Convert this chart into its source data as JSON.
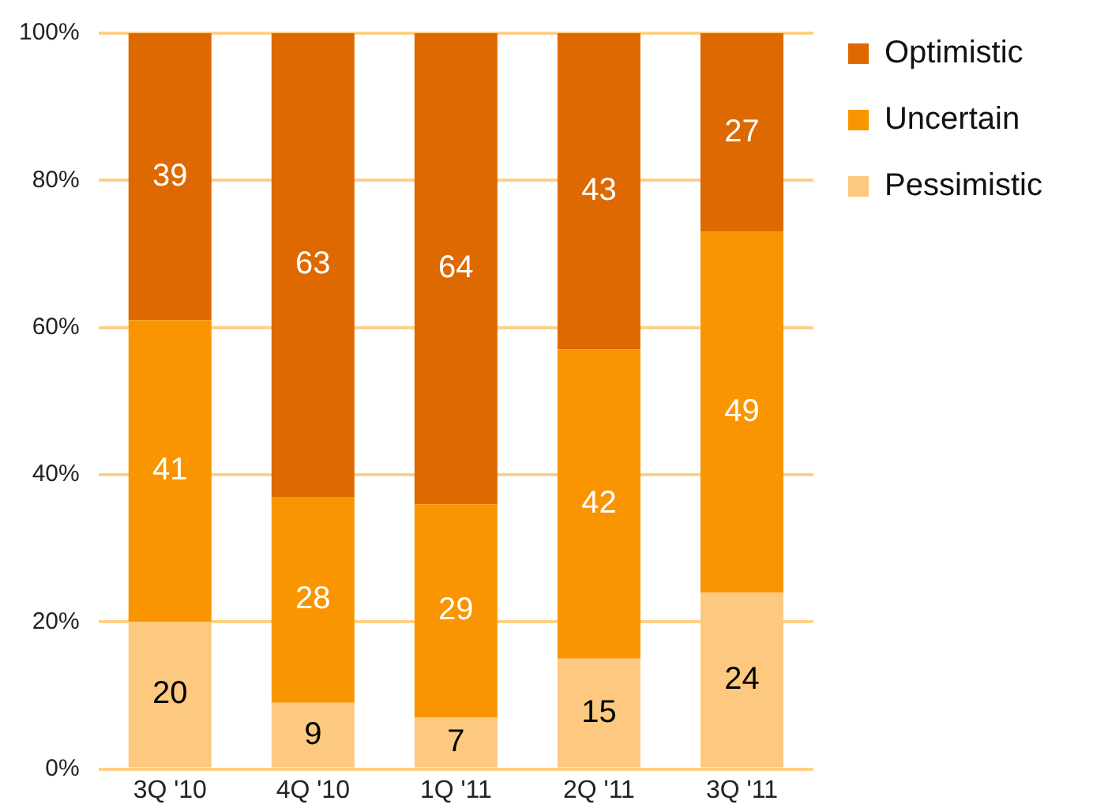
{
  "chart_data": {
    "type": "bar",
    "stacked": true,
    "categories": [
      "3Q '10",
      "4Q '10",
      "1Q '11",
      "2Q '11",
      "3Q '11"
    ],
    "series": [
      {
        "name": "Pessimistic",
        "color": "#fdc980",
        "values": [
          20,
          9,
          7,
          15,
          24
        ]
      },
      {
        "name": "Uncertain",
        "color": "#f99500",
        "values": [
          41,
          28,
          29,
          42,
          49
        ]
      },
      {
        "name": "Optimistic",
        "color": "#dd6900",
        "values": [
          39,
          63,
          64,
          43,
          27
        ]
      }
    ],
    "ylim": [
      0,
      100
    ],
    "yticks": [
      {
        "value": 0,
        "label": "0%"
      },
      {
        "value": 20,
        "label": "20%"
      },
      {
        "value": 40,
        "label": "40%"
      },
      {
        "value": 60,
        "label": "60%"
      },
      {
        "value": 80,
        "label": "80%"
      },
      {
        "value": 100,
        "label": "100%"
      }
    ],
    "grid": "y",
    "legend": "top right",
    "data_labels": true
  }
}
